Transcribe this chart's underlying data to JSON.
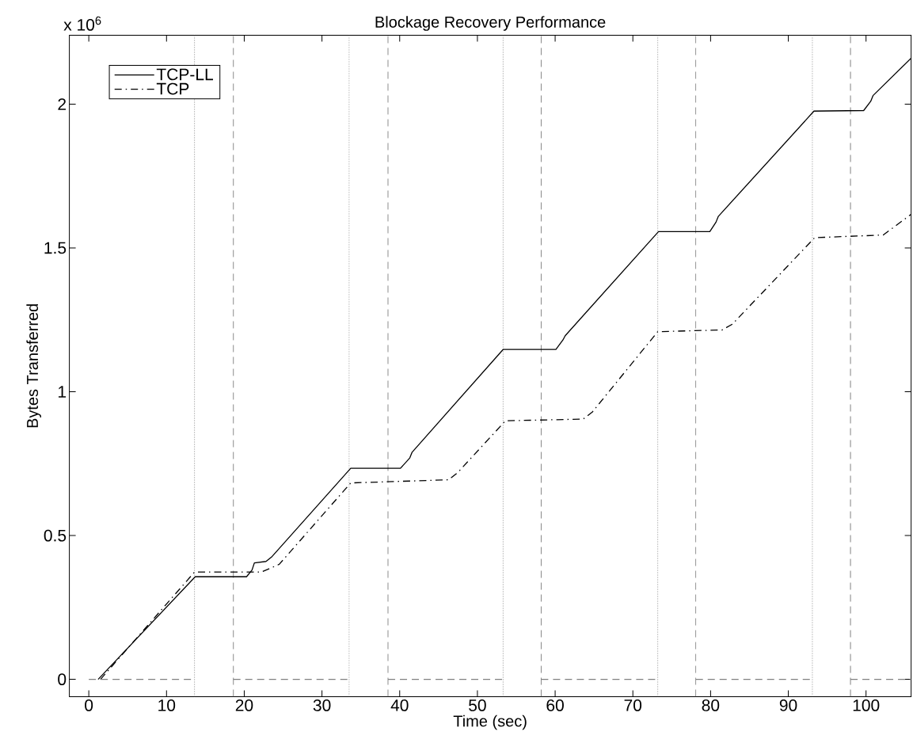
{
  "chart_data": {
    "type": "line",
    "title": "Blockage Recovery Performance",
    "xlabel": "Time (sec)",
    "ylabel": "Bytes Transferred",
    "annotations": [
      "x 10$^{6}$"
    ],
    "xlim": [
      -2.5,
      105.8
    ],
    "ylim": [
      -0.06,
      2.24
    ],
    "xticks": [
      0,
      10,
      20,
      30,
      40,
      50,
      60,
      70,
      80,
      90,
      100
    ],
    "yticks": [
      0,
      0.5,
      1,
      1.5,
      2
    ],
    "legend": "top left",
    "grid": false,
    "series": [
      {
        "name": "TCP-LL",
        "color": "#000000",
        "line_style": "solid",
        "x": [
          1.2,
          13.7,
          20.3,
          21.0,
          21.3,
          22.8,
          23.5,
          33.7,
          40.1,
          41.3,
          41.6,
          53.3,
          60.1,
          61.0,
          61.3,
          73.3,
          79.9,
          80.7,
          81.0,
          93.3,
          99.7,
          100.6,
          100.9,
          105.8
        ],
        "values": [
          0,
          0.357,
          0.357,
          0.38,
          0.405,
          0.41,
          0.425,
          0.734,
          0.734,
          0.77,
          0.79,
          1.147,
          1.147,
          1.18,
          1.195,
          1.557,
          1.557,
          1.59,
          1.61,
          1.976,
          1.978,
          2.01,
          2.03,
          2.16
        ]
      },
      {
        "name": "TCP",
        "color": "#000000",
        "line_style": "dashdot",
        "x": [
          1.5,
          13.6,
          22.2,
          24.5,
          33.7,
          46.3,
          47.5,
          53.6,
          63.6,
          64.8,
          73.2,
          81.5,
          82.8,
          93.4,
          102.2,
          103.2,
          105.8
        ],
        "values": [
          0,
          0.373,
          0.373,
          0.4,
          0.683,
          0.694,
          0.72,
          0.899,
          0.905,
          0.93,
          1.209,
          1.215,
          1.235,
          1.536,
          1.545,
          1.565,
          1.617
        ]
      },
      {
        "color": "#808080",
        "line_style": "dashed",
        "x": [
          0,
          13.6,
          16.1,
          18.6,
          33.5,
          36.0,
          38.5,
          53.3,
          55.7,
          58.2,
          73.2,
          75.6,
          78.1,
          93.1,
          95.5,
          98.0,
          105.8
        ],
        "values": [
          0,
          0,
          null,
          0,
          0,
          null,
          0,
          0,
          null,
          0,
          0,
          null,
          0,
          0,
          null,
          0,
          0
        ]
      }
    ],
    "ref_lines": [
      {
        "axis": "x",
        "value": 13.6,
        "color": "#808080",
        "line_style": "dotted"
      },
      {
        "axis": "x",
        "value": 18.6,
        "color": "#808080",
        "line_style": "dashed"
      },
      {
        "axis": "x",
        "value": 33.5,
        "color": "#808080",
        "line_style": "dotted"
      },
      {
        "axis": "x",
        "value": 38.5,
        "color": "#808080",
        "line_style": "dashed"
      },
      {
        "axis": "x",
        "value": 53.3,
        "color": "#808080",
        "line_style": "dotted"
      },
      {
        "axis": "x",
        "value": 58.2,
        "color": "#808080",
        "line_style": "dashed"
      },
      {
        "axis": "x",
        "value": 73.2,
        "color": "#808080",
        "line_style": "dotted"
      },
      {
        "axis": "x",
        "value": 78.1,
        "color": "#808080",
        "line_style": "dashed"
      },
      {
        "axis": "x",
        "value": 93.1,
        "color": "#808080",
        "line_style": "dotted"
      },
      {
        "axis": "x",
        "value": 98.0,
        "color": "#808080",
        "line_style": "dashed"
      }
    ]
  }
}
